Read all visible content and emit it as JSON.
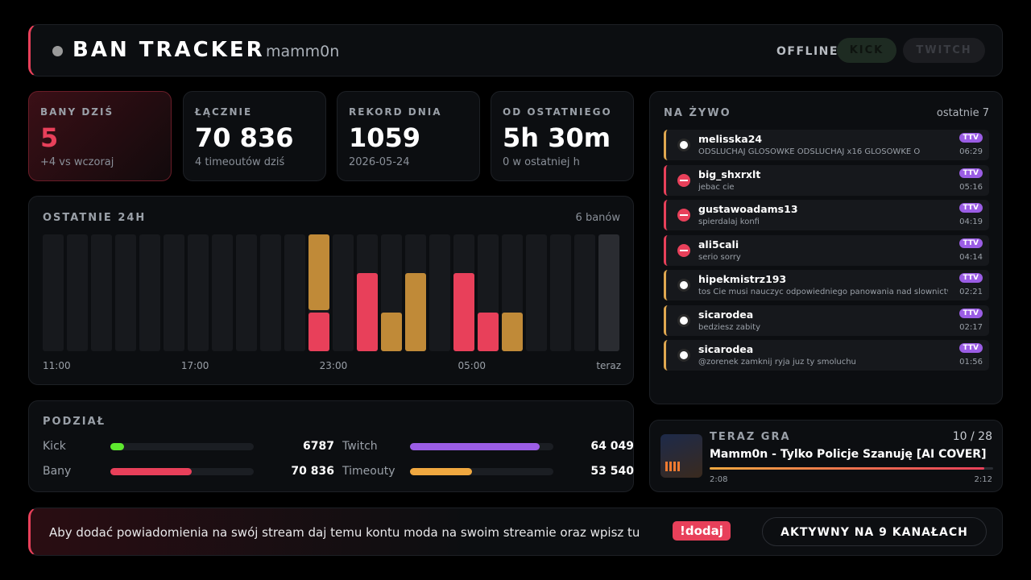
{
  "header": {
    "title": "BAN TRACKER",
    "channel": "mamm0n",
    "status": "OFFLINE",
    "platforms": [
      "KICK",
      "TWITCH"
    ]
  },
  "stats": [
    {
      "label": "BANY DZIŚ",
      "value": "5",
      "note": "+4 vs wczoraj"
    },
    {
      "label": "ŁĄCZNIE",
      "value": "70 836",
      "note": "4 timeoutów dziś"
    },
    {
      "label": "REKORD DNIA",
      "value": "1059",
      "note": "2026-05-24"
    },
    {
      "label": "OD OSTATNIEGO",
      "value": "5h 30m",
      "note": "0 w ostatniej h"
    }
  ],
  "activity": {
    "title": "OSTATNIE 24H",
    "summary": "6 banów",
    "labels": [
      "11:00",
      "17:00",
      "23:00",
      "05:00",
      "teraz"
    ],
    "ylim": [
      0,
      3
    ],
    "series": [
      {
        "color": "#e8405a",
        "values": [
          0,
          0,
          0,
          0,
          0,
          0,
          0,
          0,
          0,
          0,
          0,
          1,
          0,
          2,
          0,
          0,
          0,
          2,
          1,
          0,
          0,
          0,
          0,
          0
        ]
      },
      {
        "color": "#c08a38",
        "values": [
          0,
          0,
          0,
          0,
          0,
          0,
          0,
          0,
          0,
          0,
          0,
          2,
          0,
          0,
          1,
          2,
          0,
          0,
          0,
          1,
          0,
          0,
          0,
          0
        ]
      }
    ]
  },
  "split": {
    "title": "PODZIAŁ",
    "items": [
      {
        "label": "Kick",
        "value": 6787,
        "color": "#5ee82f"
      },
      {
        "label": "Twitch",
        "value": 64049,
        "value_label": "64 049",
        "color": "#9b5de5"
      },
      {
        "label": "Bany",
        "value": 70836,
        "value_label": "70 836",
        "color": "#e8405a"
      },
      {
        "label": "Timeouty",
        "value": 53540,
        "value_label": "53 540",
        "color": "#f0a840"
      }
    ]
  },
  "live": {
    "title": "NA ŻYWO",
    "summary": "ostatnie 7",
    "events": [
      {
        "kind": "timeout",
        "user": "melisska24",
        "message": "ODSLUCHAJ GLOSOWKE ODSLUCHAJ x16 GLOSOWKE O",
        "platform": "TTV",
        "time": "06:29"
      },
      {
        "kind": "ban",
        "user": "big_shxrxlt",
        "message": "jebac cie",
        "platform": "TTV",
        "time": "05:16"
      },
      {
        "kind": "ban",
        "user": "gustawoadams13",
        "message": "spierdalaj konfi",
        "platform": "TTV",
        "time": "04:19"
      },
      {
        "kind": "ban",
        "user": "ali5cali",
        "message": "serio sorry",
        "platform": "TTV",
        "time": "04:14"
      },
      {
        "kind": "timeout",
        "user": "hipekmistrz193",
        "message": "tos Cie musi nauczyc odpowiedniego panowania nad slownictwem",
        "platform": "TTV",
        "time": "02:21"
      },
      {
        "kind": "timeout",
        "user": "sicarodea",
        "message": "bedziesz zabity",
        "platform": "TTV",
        "time": "02:17"
      },
      {
        "kind": "timeout",
        "user": "sicarodea",
        "message": "@zorenek zamknij ryja juz ty smoluchu",
        "platform": "TTV",
        "time": "01:56"
      }
    ]
  },
  "now_playing": {
    "title": "TERAZ GRA",
    "position": "10 / 28",
    "track": "Mamm0n - Tylko Policje Szanuję [AI COVER]",
    "elapsed": "2:08",
    "duration": "2:12"
  },
  "footer": {
    "message": "Aby dodać powiadomienia na swój stream daj temu kontu moda na swoim streamie oraz wpisz tu",
    "command": "!dodaj",
    "status": "AKTYWNY NA 9 KANAŁACH"
  }
}
